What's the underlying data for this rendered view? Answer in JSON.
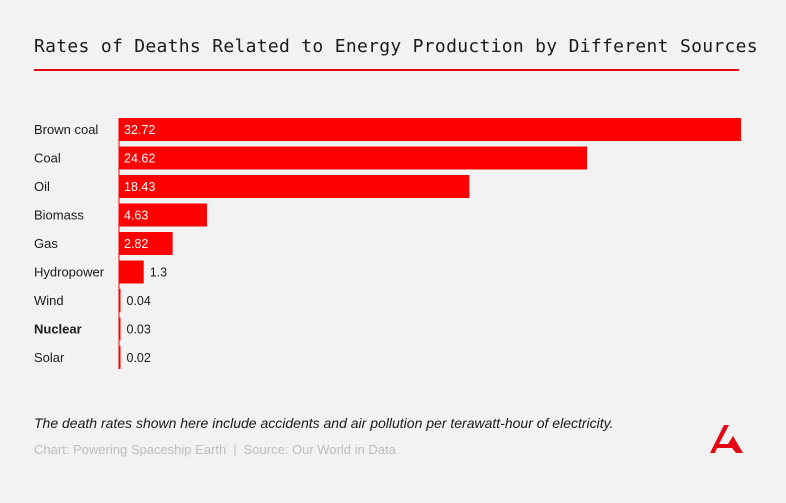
{
  "header": {
    "title": "Rates of Deaths Related to Energy Production by Different Sources"
  },
  "chart_data": {
    "type": "bar",
    "orientation": "horizontal",
    "categories": [
      "Brown coal",
      "Coal",
      "Oil",
      "Biomass",
      "Gas",
      "Hydropower",
      "Wind",
      "Nuclear",
      "Solar"
    ],
    "values": [
      32.72,
      24.62,
      18.43,
      4.63,
      2.82,
      1.3,
      0.04,
      0.03,
      0.02
    ],
    "value_labels": [
      "32.72",
      "24.62",
      "18.43",
      "4.63",
      "2.82",
      "1.3",
      "0.04",
      "0.03",
      "0.02"
    ],
    "highlighted_category": "Nuclear",
    "xlim": [
      0,
      32.72
    ],
    "bar_color": "#ff0000",
    "grid": false,
    "legend": false
  },
  "footer": {
    "caption": "The death rates shown here include accidents and air pollution per terawatt-hour of electricity.",
    "chart_credit": "Chart: Powering Spaceship Earth",
    "separator": "|",
    "source": "Source: Our World in Data"
  },
  "logo": {
    "icon": "brand-logo-icon",
    "color": "#e30613"
  }
}
